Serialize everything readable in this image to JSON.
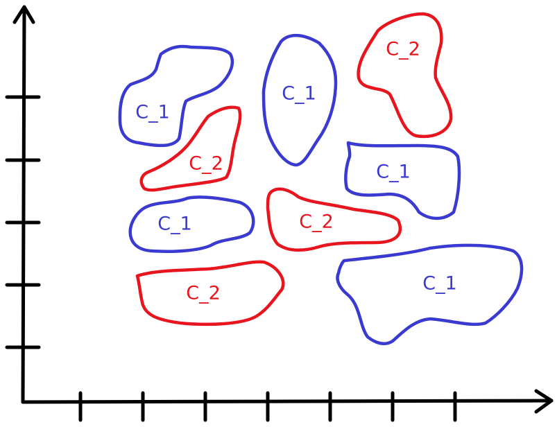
{
  "colors": {
    "class_1": "#3a3ad0",
    "class_2": "#e8141e",
    "axis": "#000000"
  },
  "regions": [
    {
      "label": "C_1",
      "class": "class_1"
    },
    {
      "label": "C_1",
      "class": "class_1"
    },
    {
      "label": "C_2",
      "class": "class_2"
    },
    {
      "label": "C_2",
      "class": "class_2"
    },
    {
      "label": "C_1",
      "class": "class_1"
    },
    {
      "label": "C_1",
      "class": "class_1"
    },
    {
      "label": "C_2",
      "class": "class_2"
    },
    {
      "label": "C_2",
      "class": "class_2"
    },
    {
      "label": "C_1",
      "class": "class_1"
    }
  ]
}
